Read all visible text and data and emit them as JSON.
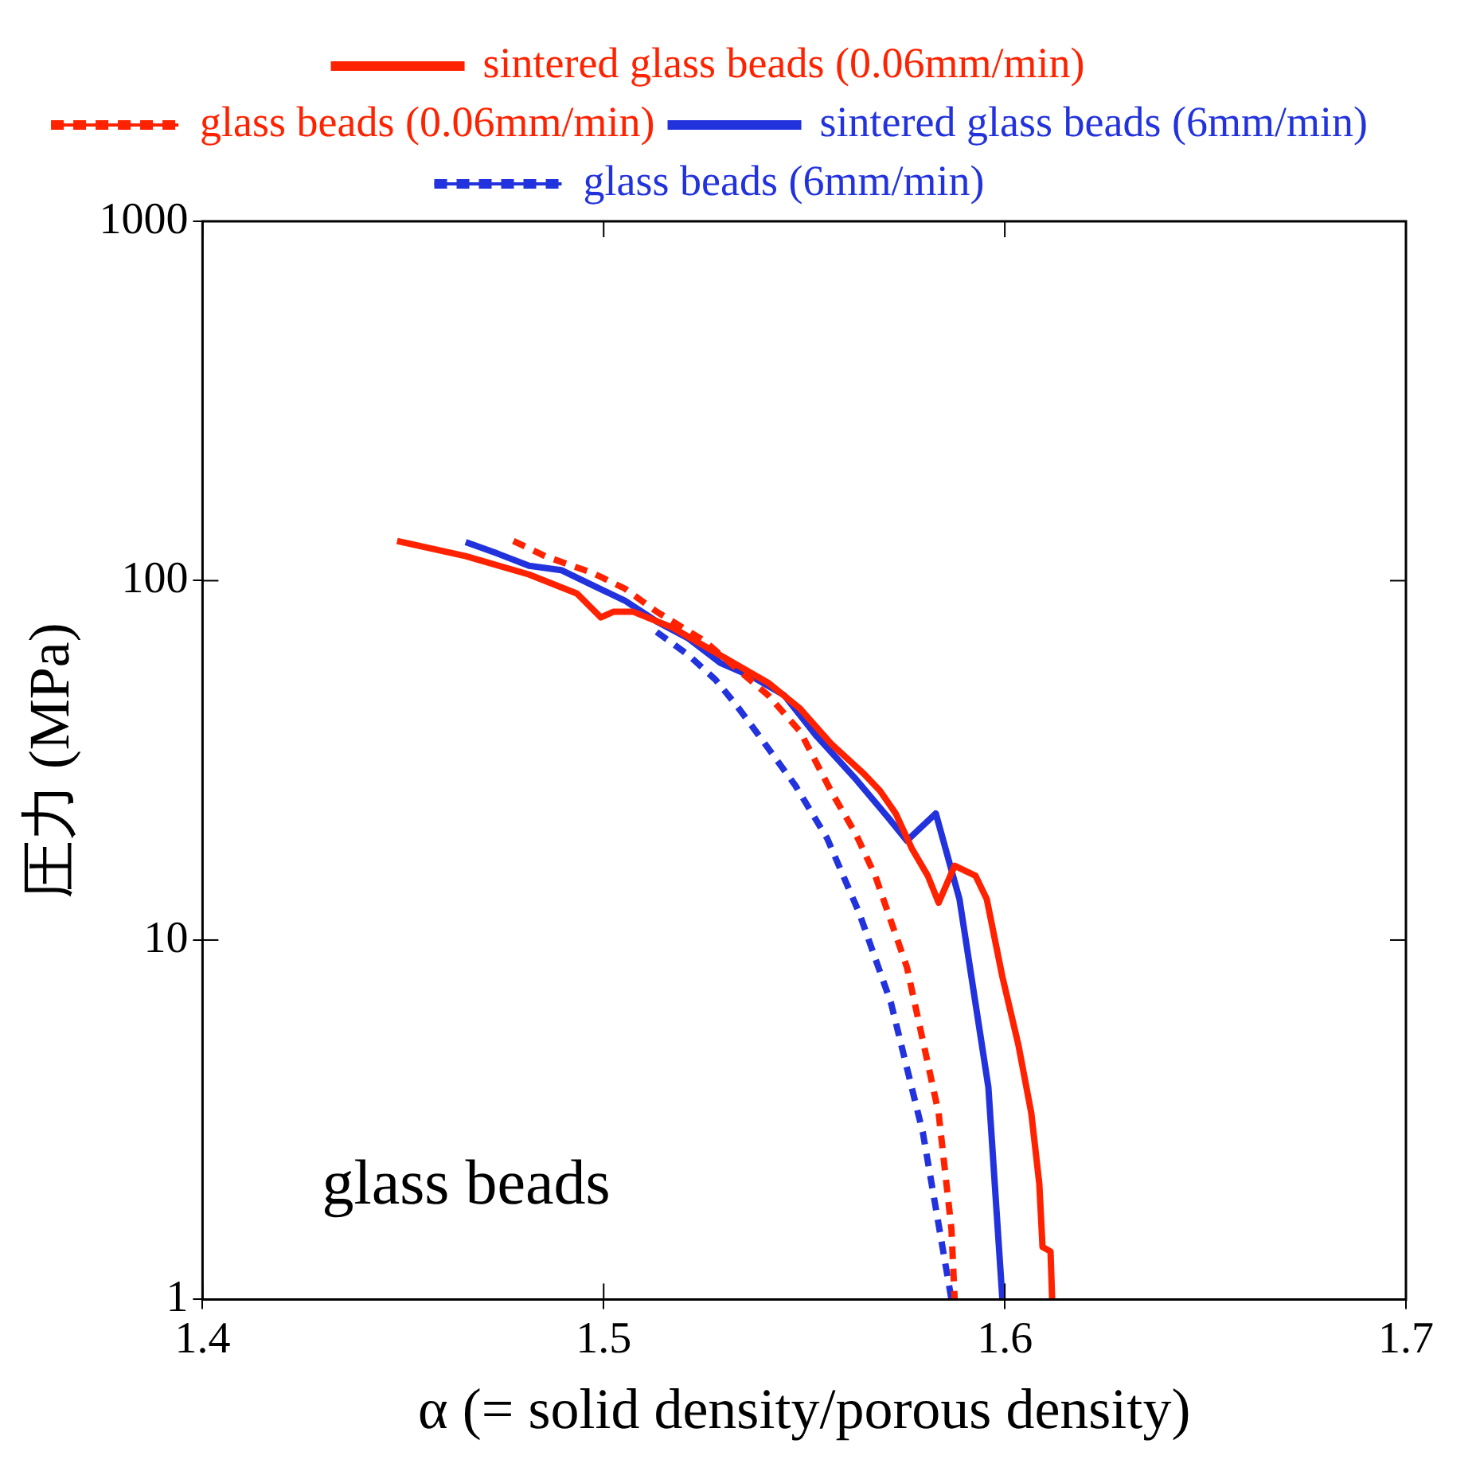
{
  "chart_data": {
    "type": "line",
    "xlabel": "α (= solid density/porous density)",
    "ylabel": "圧力 (MPa)",
    "log": "y",
    "grid": false,
    "legend": "top",
    "marker": "none",
    "xlim": [
      1.4,
      1.7
    ],
    "xticks": [
      1.4,
      1.5,
      1.6,
      1.7
    ],
    "ylim": [
      1,
      1000
    ],
    "yticks": [
      1,
      10,
      100,
      1000
    ],
    "annotations": [
      "glass beads"
    ],
    "series": [
      {
        "name": "sintered glass beads (0.06mm/min)",
        "color": "#ff2200",
        "line_style": "solid",
        "x": [
          1.4485,
          1.4656,
          1.4814,
          1.4934,
          1.4993,
          1.5025,
          1.5073,
          1.5172,
          1.5291,
          1.541,
          1.549,
          1.5569,
          1.5649,
          1.5689,
          1.5728,
          1.5768,
          1.5808,
          1.5835,
          1.5875,
          1.5927,
          1.5955,
          1.5994,
          1.6034,
          1.6066,
          1.6086,
          1.6094,
          1.6114,
          1.6118
        ],
        "values": [
          129,
          117,
          104,
          92,
          79,
          82,
          82,
          74,
          62,
          52,
          44,
          35,
          29,
          26,
          22.5,
          18,
          15.1,
          12.7,
          16.1,
          15.1,
          13,
          7.9,
          5.1,
          3.3,
          2.1,
          1.4,
          1.36,
          1
        ]
      },
      {
        "name": "glass beads (0.06mm/min)",
        "color": "#ff2200",
        "line_style": "dashed",
        "x": [
          1.4775,
          1.4854,
          1.4973,
          1.5053,
          1.5132,
          1.5251,
          1.5331,
          1.541,
          1.549,
          1.5569,
          1.5629,
          1.5677,
          1.5756,
          1.5835,
          1.5867,
          1.5875
        ],
        "values": [
          129,
          117,
          105,
          95,
          82,
          68,
          57,
          48,
          38,
          25.7,
          19.7,
          15.1,
          8.4,
          3.3,
          1.57,
          1
        ]
      },
      {
        "name": "sintered glass beads (6mm/min)",
        "color": "#2233dd",
        "line_style": "solid",
        "x": [
          1.4656,
          1.4735,
          1.4814,
          1.4894,
          1.4973,
          1.5053,
          1.5132,
          1.5212,
          1.5291,
          1.5371,
          1.545,
          1.553,
          1.5629,
          1.5708,
          1.5756,
          1.5828,
          1.5887,
          1.5959,
          1.5994
        ],
        "values": [
          128,
          119,
          110,
          107,
          97,
          88,
          77,
          69,
          59,
          54,
          48,
          37,
          28,
          22,
          18.9,
          22.5,
          13,
          3.9,
          1
        ]
      },
      {
        "name": "glass beads (6mm/min)",
        "color": "#2233dd",
        "line_style": "dashed",
        "x": [
          1.5132,
          1.5212,
          1.5279,
          1.5331,
          1.5383,
          1.5478,
          1.5557,
          1.5637,
          1.5716,
          1.5796,
          1.5867
        ],
        "values": [
          72,
          62,
          53,
          45,
          37.6,
          26.9,
          19.2,
          11.9,
          6.7,
          2.9,
          1
        ]
      }
    ]
  }
}
